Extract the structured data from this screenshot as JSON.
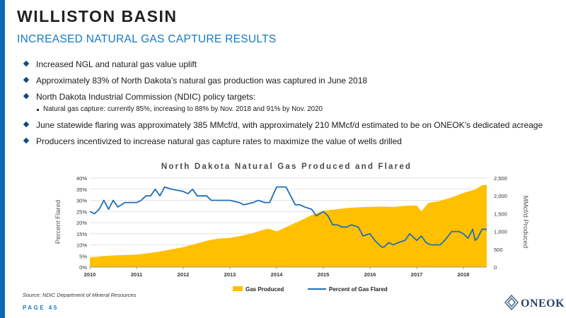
{
  "header": {
    "title": "WILLISTON BASIN",
    "subtitle": "INCREASED NATURAL GAS CAPTURE RESULTS"
  },
  "bullets": [
    "Increased NGL and natural gas value uplift",
    "Approximately 83% of North Dakota’s natural gas production was captured in June 2018",
    "North Dakota Industrial Commission (NDIC) policy targets:",
    "June statewide flaring was approximately 385 MMcf/d, with approximately 210 MMcf/d estimated to be on ONEOK’s dedicated acreage",
    "Producers incentivized to increase natural gas capture rates to maximize the value of wells drilled"
  ],
  "sub_bullet": "Natural gas capture: currently 85%, increasing to 88% by Nov. 2018 and 91% by Nov. 2020",
  "footer": {
    "source": "Source: NDIC Department of Mineral Resources",
    "page": "PAGE 45",
    "logo": "ONEOK"
  },
  "colors": {
    "accent": "#0a6ab4",
    "gas_produced": "#ffc000",
    "percent_flared": "#1f6fb4"
  },
  "chart_data": {
    "type": "area",
    "title": "North Dakota Natural Gas Produced and Flared",
    "ylabel_left": "Percent Flared",
    "ylabel_right": "MMcf/d Produced",
    "x_ticks": [
      "2010",
      "2011",
      "2012",
      "2013",
      "2014",
      "2015",
      "2016",
      "2017",
      "2018"
    ],
    "xlim": [
      2010.0,
      2018.5
    ],
    "y_left_ticks": [
      "0%",
      "5%",
      "10%",
      "15%",
      "20%",
      "25%",
      "30%",
      "35%",
      "40%"
    ],
    "y_left_lim": [
      0,
      40
    ],
    "y_right_ticks": [
      "0",
      "500",
      "1,000",
      "1,500",
      "2,000",
      "2,500"
    ],
    "y_right_lim": [
      0,
      2500
    ],
    "grid": true,
    "legend_position": "bottom",
    "series": [
      {
        "name": "Gas Produced",
        "type": "area",
        "axis": "right",
        "x": [
          2010.0,
          2010.25,
          2010.5,
          2010.75,
          2011.0,
          2011.25,
          2011.5,
          2011.75,
          2012.0,
          2012.25,
          2012.5,
          2012.75,
          2013.0,
          2013.25,
          2013.5,
          2013.75,
          2013.83,
          2014.0,
          2014.25,
          2014.5,
          2014.75,
          2015.0,
          2015.25,
          2015.5,
          2015.75,
          2016.0,
          2016.25,
          2016.5,
          2016.75,
          2017.0,
          2017.1,
          2017.25,
          2017.5,
          2017.75,
          2018.0,
          2018.25,
          2018.4,
          2018.5
        ],
        "values": [
          270,
          300,
          330,
          340,
          350,
          390,
          440,
          500,
          560,
          650,
          740,
          800,
          820,
          880,
          960,
          1060,
          1080,
          1000,
          1150,
          1300,
          1460,
          1580,
          1620,
          1660,
          1680,
          1690,
          1700,
          1690,
          1720,
          1730,
          1570,
          1800,
          1860,
          1960,
          2080,
          2180,
          2300,
          2310
        ]
      },
      {
        "name": "Percent of Gas Flared",
        "type": "line",
        "axis": "left",
        "x": [
          2010.0,
          2010.1,
          2010.2,
          2010.3,
          2010.4,
          2010.5,
          2010.6,
          2010.75,
          2011.0,
          2011.1,
          2011.2,
          2011.3,
          2011.4,
          2011.5,
          2011.6,
          2011.75,
          2012.0,
          2012.1,
          2012.2,
          2012.3,
          2012.5,
          2012.6,
          2012.75,
          2013.0,
          2013.2,
          2013.3,
          2013.5,
          2013.6,
          2013.75,
          2013.85,
          2014.0,
          2014.1,
          2014.2,
          2014.3,
          2014.4,
          2014.5,
          2014.6,
          2014.75,
          2014.85,
          2015.0,
          2015.1,
          2015.2,
          2015.3,
          2015.4,
          2015.5,
          2015.6,
          2015.75,
          2015.85,
          2016.0,
          2016.1,
          2016.2,
          2016.25,
          2016.3,
          2016.4,
          2016.5,
          2016.6,
          2016.75,
          2016.85,
          2017.0,
          2017.1,
          2017.2,
          2017.3,
          2017.5,
          2017.6,
          2017.75,
          2017.9,
          2018.0,
          2018.1,
          2018.2,
          2018.25,
          2018.3,
          2018.4,
          2018.5
        ],
        "values": [
          25,
          24,
          26,
          30,
          26,
          30,
          27,
          29,
          29,
          30,
          32,
          32,
          35,
          32,
          36,
          35,
          34,
          33,
          35,
          32,
          32,
          30,
          30,
          30,
          29,
          28,
          29,
          30,
          29,
          29,
          36,
          36,
          36,
          32,
          28,
          28,
          27,
          26,
          23,
          25,
          23,
          19,
          19,
          18,
          18,
          19,
          18,
          14,
          15,
          12,
          10,
          9,
          9,
          11,
          10,
          11,
          12,
          15,
          12,
          14,
          11,
          10,
          10,
          12,
          16,
          16,
          15,
          13,
          17,
          12,
          13,
          17,
          17
        ]
      }
    ]
  }
}
